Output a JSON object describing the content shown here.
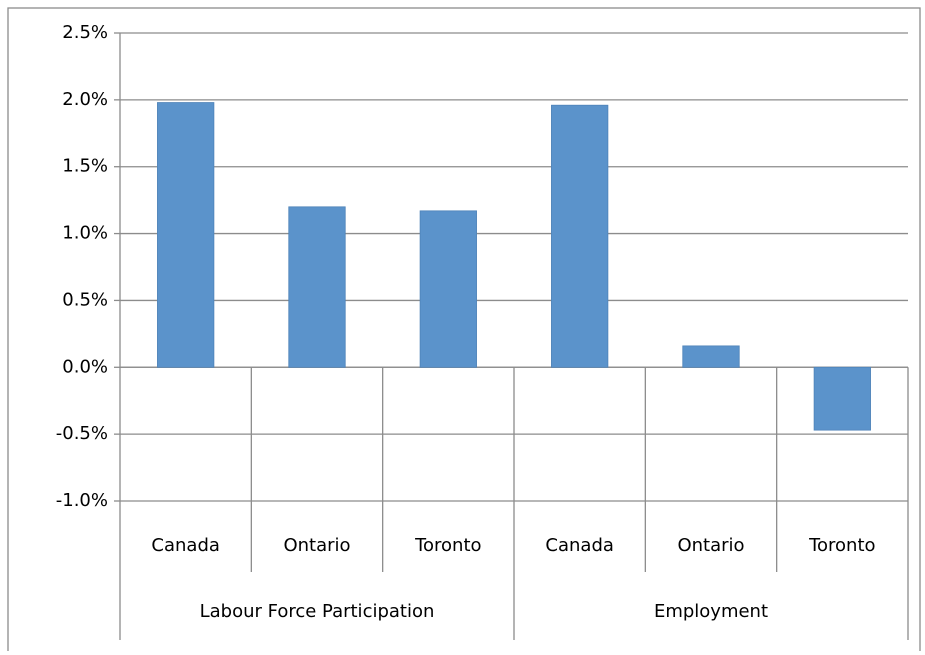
{
  "chart_data": {
    "type": "bar",
    "groups": [
      {
        "name": "Labour Force Participation",
        "categories": [
          "Canada",
          "Ontario",
          "Toronto"
        ],
        "values": [
          1.98,
          1.2,
          1.17
        ]
      },
      {
        "name": "Employment",
        "categories": [
          "Canada",
          "Ontario",
          "Toronto"
        ],
        "values": [
          1.96,
          0.16,
          -0.47
        ]
      }
    ],
    "color": "#5b93cb",
    "ylim": [
      -1,
      2.5
    ],
    "yticks": [
      {
        "value": -1,
        "label": "-1.0%"
      },
      {
        "value": -0.5,
        "label": "-0.5%"
      },
      {
        "value": 0,
        "label": "0.0%"
      },
      {
        "value": 0.5,
        "label": "0.5%"
      },
      {
        "value": 1,
        "label": "1.0%"
      },
      {
        "value": 1.5,
        "label": "1.5%"
      },
      {
        "value": 2,
        "label": "2.0%"
      },
      {
        "value": 2.5,
        "label": "2.5%"
      }
    ],
    "grid": true
  }
}
